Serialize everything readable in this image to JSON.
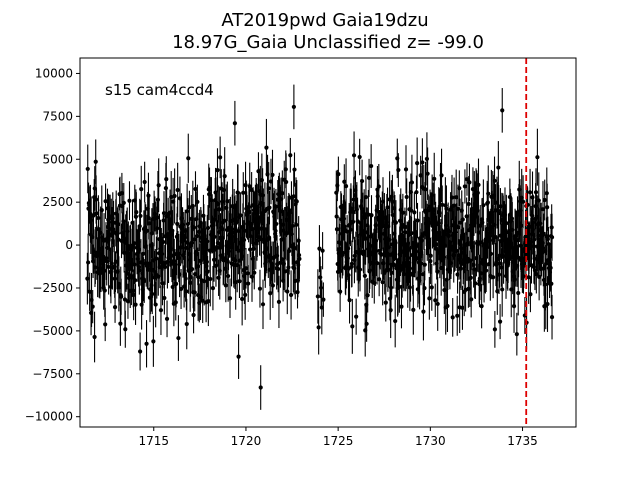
{
  "chart_data": {
    "type": "scatter",
    "title_line1": "AT2019pwd  Gaia19dzu",
    "title_line2": "18.97G_Gaia Unclassified z= -99.0",
    "annotation": "s15 cam4ccd4",
    "xlabel": "",
    "ylabel": "",
    "xlim": [
      1711.0,
      1737.9
    ],
    "ylim": [
      -10600,
      10900
    ],
    "xticks": [
      1715,
      1720,
      1725,
      1730,
      1735
    ],
    "yticks": [
      -10000,
      -7500,
      -5000,
      -2500,
      0,
      2500,
      5000,
      7500,
      10000
    ],
    "vline": {
      "x": 1735.2,
      "color": "#dd0000",
      "style": "dashed"
    },
    "marker_color": "#000000",
    "segments": [
      {
        "x_start": 1711.4,
        "x_end": 1722.9,
        "n": 560
      },
      {
        "x_start": 1723.9,
        "x_end": 1724.2,
        "n": 8
      },
      {
        "x_start": 1724.9,
        "x_end": 1736.6,
        "n": 620
      }
    ],
    "notable_points": [
      {
        "x": 1722.6,
        "y": 8050
      },
      {
        "x": 1719.4,
        "y": 7100
      },
      {
        "x": 1733.9,
        "y": 7850
      },
      {
        "x": 1720.8,
        "y": -8300
      },
      {
        "x": 1719.6,
        "y": -6500
      },
      {
        "x": 1711.6,
        "y": -3950
      },
      {
        "x": 1736.6,
        "y": -4200
      },
      {
        "x": 1711.8,
        "y": 3300
      }
    ],
    "typical_scatter_sigma": 1900,
    "typical_error_bar": 1300
  }
}
